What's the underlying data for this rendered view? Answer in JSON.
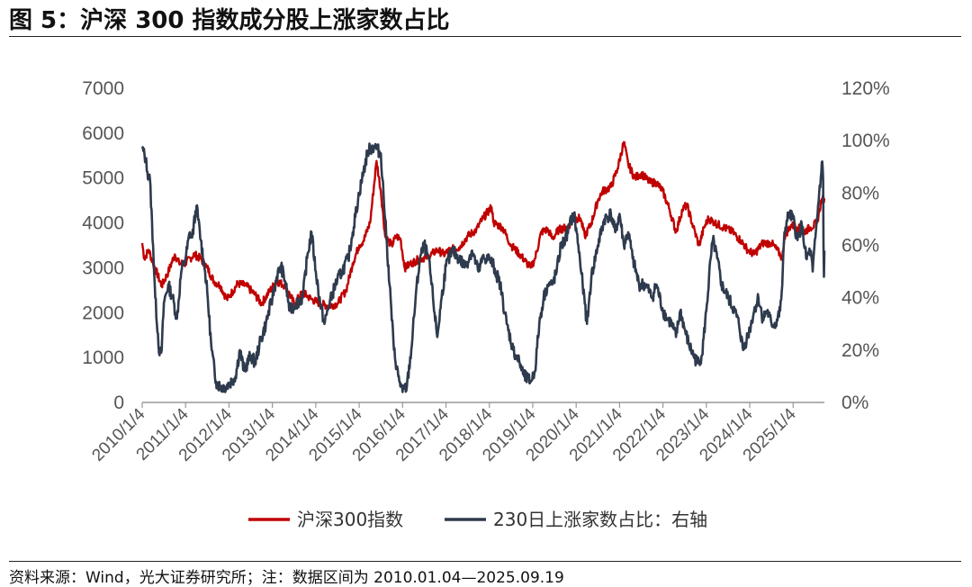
{
  "header": {
    "title": "图 5：沪深 300 指数成分股上涨家数占比"
  },
  "footer": {
    "source": "资料来源：Wind，光大证券研究所；注：数据区间为 2010.01.04—2025.09.19"
  },
  "colors": {
    "index": "#c00000",
    "ratio": "#2e3a4d",
    "axis": "#999999",
    "tick": "#555555"
  },
  "chart_data": {
    "type": "line",
    "title": "沪深 300 指数成分股上涨家数占比",
    "x_ticks": [
      "2010/1/4",
      "2011/1/4",
      "2012/1/4",
      "2013/1/4",
      "2014/1/4",
      "2015/1/4",
      "2016/1/4",
      "2017/1/4",
      "2018/1/4",
      "2019/1/4",
      "2020/1/4",
      "2021/1/4",
      "2022/1/4",
      "2023/1/4",
      "2024/1/4",
      "2025/1/4"
    ],
    "x_range": [
      2010.0,
      2025.72
    ],
    "y_left": {
      "ticks": [
        "0",
        "1000",
        "2000",
        "3000",
        "4000",
        "5000",
        "6000",
        "7000"
      ],
      "range": [
        0,
        7000
      ]
    },
    "y_right": {
      "ticks": [
        "0%",
        "20%",
        "40%",
        "60%",
        "80%",
        "100%",
        "120%"
      ],
      "range": [
        0,
        120
      ]
    },
    "legend": [
      "沪深300指数",
      "230日上涨家数占比：右轴"
    ],
    "series": [
      {
        "name": "沪深300指数",
        "axis": "left",
        "points": [
          [
            2010.0,
            3550
          ],
          [
            2010.05,
            3200
          ],
          [
            2010.15,
            3400
          ],
          [
            2010.25,
            3100
          ],
          [
            2010.45,
            2600
          ],
          [
            2010.6,
            2900
          ],
          [
            2010.75,
            3300
          ],
          [
            2010.85,
            3100
          ],
          [
            2011.0,
            3100
          ],
          [
            2011.2,
            3300
          ],
          [
            2011.35,
            3200
          ],
          [
            2011.5,
            3000
          ],
          [
            2011.65,
            2700
          ],
          [
            2011.8,
            2600
          ],
          [
            2011.95,
            2300
          ],
          [
            2012.0,
            2350
          ],
          [
            2012.2,
            2650
          ],
          [
            2012.4,
            2600
          ],
          [
            2012.6,
            2400
          ],
          [
            2012.75,
            2200
          ],
          [
            2012.95,
            2500
          ],
          [
            2013.1,
            2700
          ],
          [
            2013.3,
            2600
          ],
          [
            2013.5,
            2200
          ],
          [
            2013.7,
            2450
          ],
          [
            2013.9,
            2300
          ],
          [
            2014.1,
            2200
          ],
          [
            2014.3,
            2150
          ],
          [
            2014.5,
            2200
          ],
          [
            2014.7,
            2500
          ],
          [
            2014.85,
            3100
          ],
          [
            2015.0,
            3500
          ],
          [
            2015.1,
            3600
          ],
          [
            2015.25,
            4000
          ],
          [
            2015.4,
            5380
          ],
          [
            2015.5,
            4700
          ],
          [
            2015.6,
            3700
          ],
          [
            2015.75,
            3500
          ],
          [
            2015.85,
            3700
          ],
          [
            2015.95,
            3650
          ],
          [
            2016.05,
            3000
          ],
          [
            2016.2,
            3100
          ],
          [
            2016.4,
            3200
          ],
          [
            2016.6,
            3250
          ],
          [
            2016.8,
            3400
          ],
          [
            2016.95,
            3300
          ],
          [
            2017.1,
            3400
          ],
          [
            2017.3,
            3450
          ],
          [
            2017.5,
            3700
          ],
          [
            2017.7,
            3850
          ],
          [
            2017.85,
            4100
          ],
          [
            2018.05,
            4350
          ],
          [
            2018.1,
            4000
          ],
          [
            2018.3,
            3900
          ],
          [
            2018.5,
            3500
          ],
          [
            2018.7,
            3300
          ],
          [
            2018.95,
            3000
          ],
          [
            2019.05,
            3200
          ],
          [
            2019.2,
            3800
          ],
          [
            2019.35,
            3850
          ],
          [
            2019.45,
            3650
          ],
          [
            2019.6,
            3850
          ],
          [
            2019.8,
            3900
          ],
          [
            2019.95,
            4100
          ],
          [
            2020.1,
            4100
          ],
          [
            2020.2,
            3700
          ],
          [
            2020.35,
            4000
          ],
          [
            2020.5,
            4500
          ],
          [
            2020.6,
            4700
          ],
          [
            2020.8,
            4800
          ],
          [
            2020.95,
            5200
          ],
          [
            2021.1,
            5800
          ],
          [
            2021.2,
            5300
          ],
          [
            2021.35,
            5000
          ],
          [
            2021.5,
            5100
          ],
          [
            2021.7,
            4900
          ],
          [
            2021.85,
            4900
          ],
          [
            2022.0,
            4700
          ],
          [
            2022.15,
            4300
          ],
          [
            2022.3,
            3800
          ],
          [
            2022.45,
            4300
          ],
          [
            2022.55,
            4400
          ],
          [
            2022.7,
            3900
          ],
          [
            2022.83,
            3500
          ],
          [
            2022.95,
            3900
          ],
          [
            2023.05,
            4100
          ],
          [
            2023.2,
            4000
          ],
          [
            2023.4,
            3900
          ],
          [
            2023.6,
            3800
          ],
          [
            2023.8,
            3600
          ],
          [
            2023.95,
            3400
          ],
          [
            2024.1,
            3300
          ],
          [
            2024.3,
            3550
          ],
          [
            2024.5,
            3550
          ],
          [
            2024.7,
            3300
          ],
          [
            2024.75,
            3200
          ],
          [
            2024.8,
            3700
          ],
          [
            2024.95,
            3950
          ],
          [
            2025.1,
            3900
          ],
          [
            2025.25,
            3800
          ],
          [
            2025.4,
            3900
          ],
          [
            2025.55,
            4000
          ],
          [
            2025.65,
            4500
          ],
          [
            2025.72,
            4550
          ]
        ]
      },
      {
        "name": "230日上涨家数占比：右轴",
        "axis": "right",
        "points": [
          [
            2010.0,
            97
          ],
          [
            2010.08,
            93
          ],
          [
            2010.12,
            88
          ],
          [
            2010.18,
            85
          ],
          [
            2010.25,
            60
          ],
          [
            2010.3,
            40
          ],
          [
            2010.4,
            18
          ],
          [
            2010.45,
            20
          ],
          [
            2010.5,
            38
          ],
          [
            2010.6,
            45
          ],
          [
            2010.7,
            40
          ],
          [
            2010.8,
            32
          ],
          [
            2010.9,
            50
          ],
          [
            2011.0,
            55
          ],
          [
            2011.1,
            65
          ],
          [
            2011.15,
            63
          ],
          [
            2011.25,
            75
          ],
          [
            2011.35,
            62
          ],
          [
            2011.45,
            50
          ],
          [
            2011.5,
            42
          ],
          [
            2011.6,
            20
          ],
          [
            2011.7,
            8
          ],
          [
            2011.8,
            6
          ],
          [
            2011.9,
            6
          ],
          [
            2012.0,
            7
          ],
          [
            2012.15,
            10
          ],
          [
            2012.25,
            20
          ],
          [
            2012.35,
            12
          ],
          [
            2012.5,
            18
          ],
          [
            2012.6,
            15
          ],
          [
            2012.7,
            22
          ],
          [
            2012.85,
            30
          ],
          [
            2013.0,
            40
          ],
          [
            2013.1,
            48
          ],
          [
            2013.2,
            52
          ],
          [
            2013.3,
            46
          ],
          [
            2013.4,
            35
          ],
          [
            2013.55,
            38
          ],
          [
            2013.7,
            40
          ],
          [
            2013.8,
            55
          ],
          [
            2013.9,
            65
          ],
          [
            2014.0,
            50
          ],
          [
            2014.1,
            38
          ],
          [
            2014.2,
            30
          ],
          [
            2014.3,
            37
          ],
          [
            2014.45,
            45
          ],
          [
            2014.6,
            50
          ],
          [
            2014.75,
            55
          ],
          [
            2014.85,
            65
          ],
          [
            2015.0,
            80
          ],
          [
            2015.1,
            88
          ],
          [
            2015.2,
            96
          ],
          [
            2015.35,
            98
          ],
          [
            2015.5,
            95
          ],
          [
            2015.6,
            70
          ],
          [
            2015.7,
            45
          ],
          [
            2015.8,
            20
          ],
          [
            2015.9,
            10
          ],
          [
            2016.0,
            4
          ],
          [
            2016.1,
            6
          ],
          [
            2016.2,
            20
          ],
          [
            2016.3,
            40
          ],
          [
            2016.4,
            55
          ],
          [
            2016.5,
            60
          ],
          [
            2016.6,
            55
          ],
          [
            2016.7,
            40
          ],
          [
            2016.8,
            25
          ],
          [
            2016.9,
            40
          ],
          [
            2017.0,
            52
          ],
          [
            2017.15,
            58
          ],
          [
            2017.3,
            55
          ],
          [
            2017.45,
            52
          ],
          [
            2017.6,
            58
          ],
          [
            2017.75,
            50
          ],
          [
            2017.85,
            55
          ],
          [
            2018.0,
            55
          ],
          [
            2018.1,
            52
          ],
          [
            2018.25,
            45
          ],
          [
            2018.4,
            30
          ],
          [
            2018.55,
            20
          ],
          [
            2018.7,
            15
          ],
          [
            2018.8,
            10
          ],
          [
            2018.95,
            8
          ],
          [
            2019.05,
            12
          ],
          [
            2019.15,
            30
          ],
          [
            2019.25,
            40
          ],
          [
            2019.35,
            45
          ],
          [
            2019.45,
            45
          ],
          [
            2019.55,
            50
          ],
          [
            2019.65,
            60
          ],
          [
            2019.75,
            62
          ],
          [
            2019.85,
            68
          ],
          [
            2019.95,
            72
          ],
          [
            2020.05,
            60
          ],
          [
            2020.15,
            45
          ],
          [
            2020.25,
            30
          ],
          [
            2020.35,
            48
          ],
          [
            2020.5,
            60
          ],
          [
            2020.65,
            70
          ],
          [
            2020.8,
            72
          ],
          [
            2020.9,
            65
          ],
          [
            2021.0,
            72
          ],
          [
            2021.1,
            60
          ],
          [
            2021.2,
            65
          ],
          [
            2021.3,
            55
          ],
          [
            2021.45,
            45
          ],
          [
            2021.6,
            45
          ],
          [
            2021.75,
            40
          ],
          [
            2021.85,
            45
          ],
          [
            2022.0,
            35
          ],
          [
            2022.1,
            32
          ],
          [
            2022.2,
            30
          ],
          [
            2022.3,
            25
          ],
          [
            2022.4,
            35
          ],
          [
            2022.5,
            28
          ],
          [
            2022.6,
            22
          ],
          [
            2022.7,
            18
          ],
          [
            2022.8,
            15
          ],
          [
            2022.9,
            18
          ],
          [
            2023.0,
            35
          ],
          [
            2023.1,
            55
          ],
          [
            2023.15,
            62
          ],
          [
            2023.25,
            55
          ],
          [
            2023.35,
            45
          ],
          [
            2023.5,
            40
          ],
          [
            2023.65,
            35
          ],
          [
            2023.75,
            30
          ],
          [
            2023.85,
            20
          ],
          [
            2024.0,
            28
          ],
          [
            2024.1,
            35
          ],
          [
            2024.2,
            40
          ],
          [
            2024.3,
            32
          ],
          [
            2024.4,
            35
          ],
          [
            2024.5,
            30
          ],
          [
            2024.6,
            30
          ],
          [
            2024.7,
            35
          ],
          [
            2024.75,
            45
          ],
          [
            2024.8,
            65
          ],
          [
            2024.9,
            72
          ],
          [
            2025.0,
            70
          ],
          [
            2025.1,
            62
          ],
          [
            2025.2,
            68
          ],
          [
            2025.3,
            55
          ],
          [
            2025.4,
            58
          ],
          [
            2025.45,
            50
          ],
          [
            2025.55,
            70
          ],
          [
            2025.6,
            80
          ],
          [
            2025.65,
            88
          ],
          [
            2025.67,
            92
          ],
          [
            2025.69,
            85
          ],
          [
            2025.7,
            60
          ],
          [
            2025.71,
            48
          ],
          [
            2025.72,
            58
          ]
        ]
      }
    ]
  }
}
